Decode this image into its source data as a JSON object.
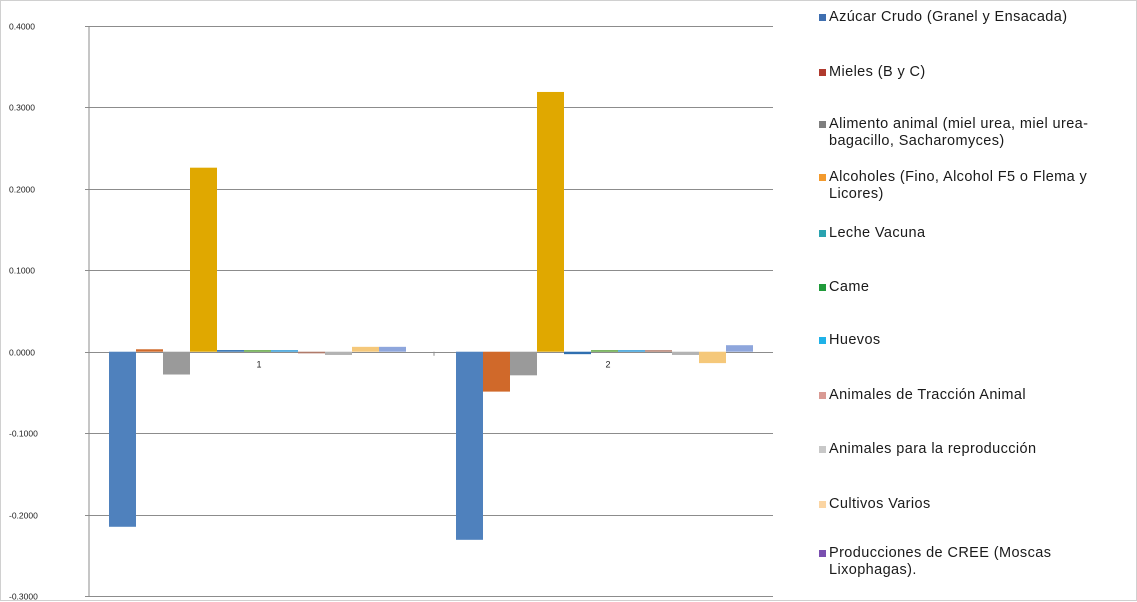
{
  "chart_data": {
    "type": "bar",
    "categories": [
      "1",
      "2"
    ],
    "ylim": [
      -0.3,
      0.4
    ],
    "yticks": [
      -0.3,
      -0.2,
      -0.1,
      0.0,
      0.1,
      0.2,
      0.3,
      0.4
    ],
    "ytick_labels": [
      "-0.3000",
      "-0.2000",
      "-0.1000",
      "0.0000",
      "0.1000",
      "0.2000",
      "0.3000",
      "0.4000"
    ],
    "grid": true,
    "legend_position": "right",
    "series": [
      {
        "name": "Azúcar Crudo (Granel y Ensacada)",
        "color": "#4f81bd",
        "values": [
          -0.215,
          -0.231
        ]
      },
      {
        "name": "Mieles (B y C)",
        "color": "#d0692a",
        "values": [
          0.003,
          -0.049
        ]
      },
      {
        "name": "Alimento animal (miel urea, miel urea-bagacillo, Sacharomyces)",
        "color": "#9a9a9a",
        "values": [
          -0.028,
          -0.029
        ]
      },
      {
        "name": "Alcoholes (Fino, Alcohol F5 o Flema y Licores)",
        "color": "#e0a800",
        "values": [
          0.226,
          0.319
        ]
      },
      {
        "name": "Leche Vacuna",
        "color": "#2f6fb0",
        "values": [
          0.002,
          -0.003
        ]
      },
      {
        "name": "Carne",
        "color": "#5aa13a",
        "values": [
          0.001,
          0.001
        ]
      },
      {
        "name": "Huevos",
        "color": "#2e98d6",
        "values": [
          0.001,
          0.0
        ]
      },
      {
        "name": "Animales de Tracción Animal",
        "color": "#b07a6a",
        "values": [
          -0.002,
          0.0
        ]
      },
      {
        "name": "Animales para la reproducción",
        "color": "#b3b3b3",
        "values": [
          -0.004,
          -0.004
        ]
      },
      {
        "name": "Cultivos Varios",
        "color": "#f5c87a",
        "values": [
          0.006,
          -0.014
        ]
      },
      {
        "name": "Producciones de CREE (Moscas Lixophagas).",
        "color": "#8ea6dc",
        "values": [
          0.006,
          0.008
        ]
      }
    ],
    "legend_display": [
      {
        "label": "Azúcar Crudo (Granel y Ensacada)",
        "color": "#3f6fb0"
      },
      {
        "label": "Mieles (B y C)",
        "color": "#b03a2e"
      },
      {
        "label": "Alimento animal (miel urea, miel urea-bagacillo, Sacharomyces)",
        "color": "#7f7f7f"
      },
      {
        "label": "Alcoholes (Fino, Alcohol F5 o Flema y Licores)",
        "color": "#f39a2d"
      },
      {
        "label": "Leche Vacuna",
        "color": "#2aa3b0"
      },
      {
        "label": "Came",
        "color": "#1f9a3a"
      },
      {
        "label": "Huevos",
        "color": "#1fb2e8"
      },
      {
        "label": "Animales de Tracción Animal",
        "color": "#d99a94"
      },
      {
        "label": "Animales para la reproducción",
        "color": "#c8c8c8"
      },
      {
        "label": " Cultivos Varios",
        "color": "#fbd5a3"
      },
      {
        "label": "Producciones de CREE (Moscas Lixophagas).",
        "color": "#7a4fb0"
      }
    ]
  }
}
